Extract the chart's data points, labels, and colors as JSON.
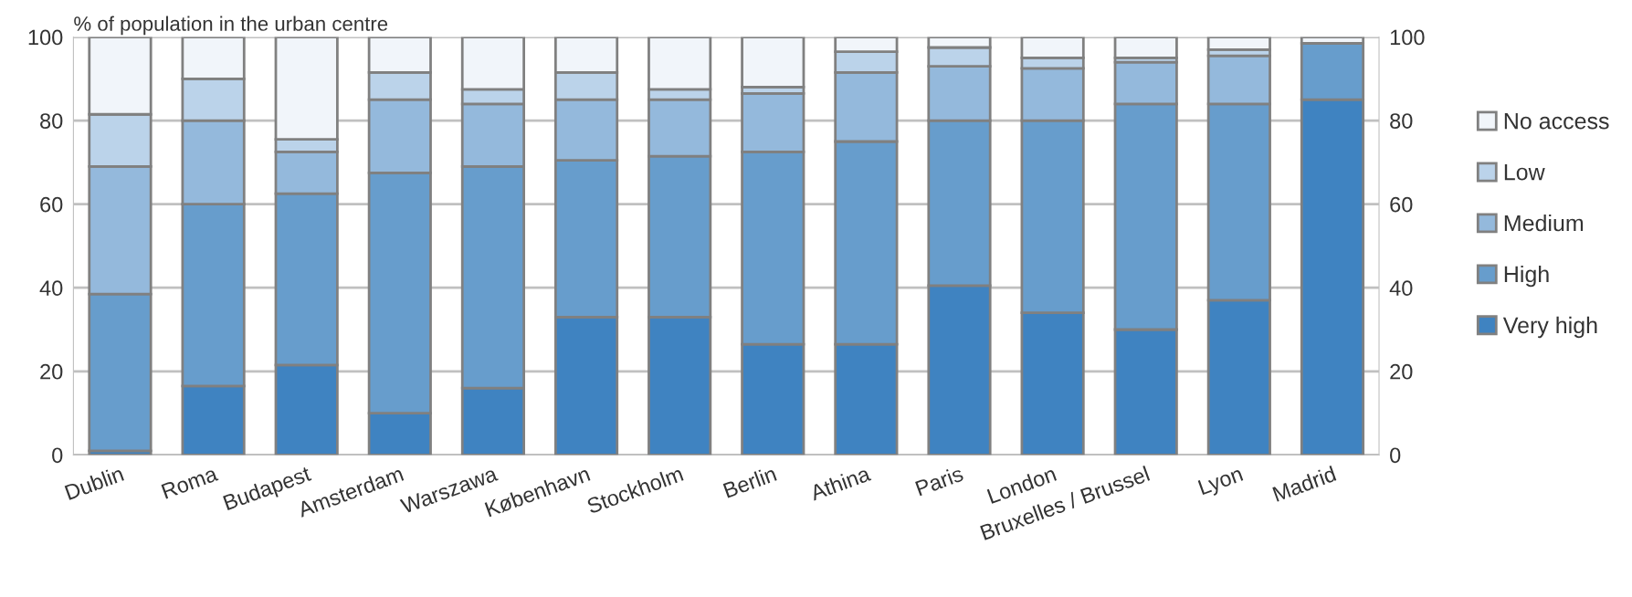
{
  "chart_data": {
    "type": "bar",
    "stacked": true,
    "ylabel": "% of population in the urban centre",
    "categories": [
      "Dublin",
      "Roma",
      "Budapest",
      "Amsterdam",
      "Warszawa",
      "København",
      "Stockholm",
      "Berlin",
      "Athina",
      "Paris",
      "London",
      "Bruxelles / Brussel",
      "Lyon",
      "Madrid"
    ],
    "series": [
      {
        "name": "Very high",
        "color": "#3f83c1",
        "values": [
          1,
          16.5,
          21.5,
          10,
          16,
          33,
          33,
          26.5,
          26.5,
          40.5,
          34,
          30,
          37,
          85
        ]
      },
      {
        "name": "High",
        "color": "#679dcc",
        "values": [
          37.5,
          43.5,
          41,
          57.5,
          53,
          37.5,
          38.5,
          46,
          48.5,
          39.5,
          46,
          54,
          47,
          13.5
        ]
      },
      {
        "name": "Medium",
        "color": "#94b9dc",
        "values": [
          30.5,
          20,
          10,
          17.5,
          15,
          14.5,
          13.5,
          14,
          16.5,
          13,
          12.5,
          10,
          11.5,
          0
        ]
      },
      {
        "name": "Low",
        "color": "#bbd3ea",
        "values": [
          12.5,
          10,
          3,
          6.5,
          3.5,
          6.5,
          2.5,
          1.5,
          5,
          4.5,
          2.5,
          1,
          1.5,
          0
        ]
      },
      {
        "name": "No access",
        "color": "#f1f5fa",
        "values": [
          18.5,
          10,
          24.5,
          8.5,
          12.5,
          8.5,
          12.5,
          12,
          3.5,
          2.5,
          5,
          5,
          3,
          1.5
        ]
      }
    ],
    "ylim": [
      0,
      100
    ],
    "yticks": [
      0,
      20,
      40,
      60,
      80,
      100
    ],
    "y2lim": [
      0,
      100
    ],
    "y2ticks": [
      0,
      20,
      40,
      60,
      80,
      100
    ],
    "grid": "y",
    "legend": "right"
  }
}
